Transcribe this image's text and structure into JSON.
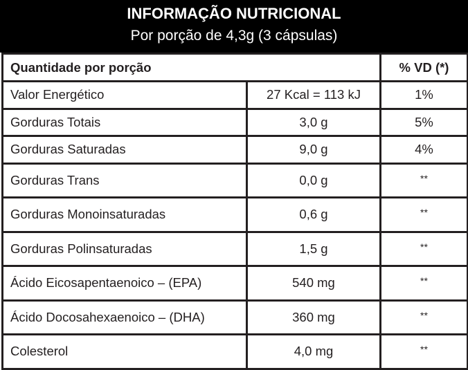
{
  "header": {
    "title": "INFORMAÇÃO NUTRICIONAL",
    "subtitle": "Por porção de 4,3g (3 cápsulas)"
  },
  "table": {
    "columns": {
      "quantity_label": "Quantidade por porção",
      "vd_label": "% VD (*)"
    },
    "rows": [
      {
        "name": "Valor Energético",
        "amount": "27 Kcal = 113 kJ",
        "vd": "1%"
      },
      {
        "name": "Gorduras Totais",
        "amount": "3,0 g",
        "vd": "5%"
      },
      {
        "name": "Gorduras Saturadas",
        "amount": "9,0 g",
        "vd": "4%"
      },
      {
        "name": "Gorduras Trans",
        "amount": "0,0 g",
        "vd": "**"
      },
      {
        "name": "Gorduras Monoinsaturadas",
        "amount": "0,6 g",
        "vd": "**"
      },
      {
        "name": "Gorduras Polinsaturadas",
        "amount": "1,5 g",
        "vd": "**"
      },
      {
        "name": "Ácido Eicosapentaenoico – (EPA)",
        "amount": "540 mg",
        "vd": "**"
      },
      {
        "name": "Ácido Docosahexaenoico – (DHA)",
        "amount": "360 mg",
        "vd": "**"
      },
      {
        "name": "Colesterol",
        "amount": "4,0 mg",
        "vd": "**"
      }
    ]
  },
  "colors": {
    "header_background": "#000000",
    "header_text": "#ffffff",
    "border": "#231f20",
    "text": "#231f20"
  }
}
